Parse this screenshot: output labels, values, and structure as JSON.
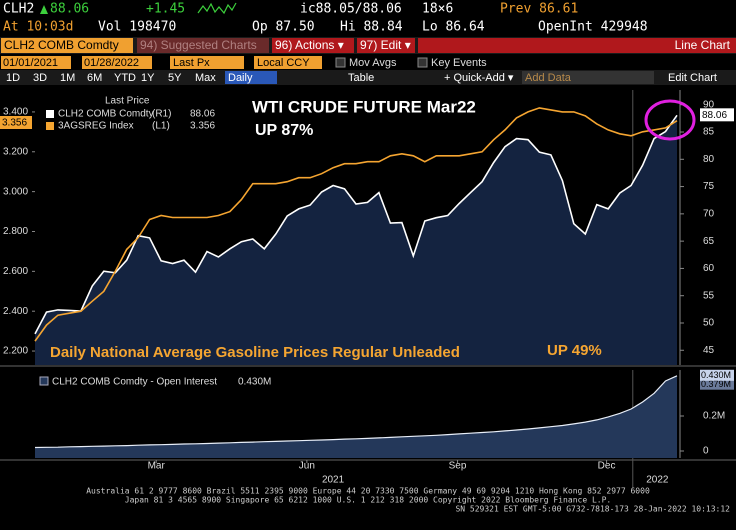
{
  "header": {
    "ticker": "CLH2",
    "last": "88.06",
    "change": "+1.45",
    "bid_ask": "ic88.05/88.06",
    "size": "18×6",
    "prev": "Prev 86.61",
    "time": "At 10:03d",
    "vol": "Vol 198470",
    "open": "Op 87.50",
    "high": "Hi 88.84",
    "low": "Lo 86.64",
    "open_interest": "OpenInt 429948"
  },
  "toolbar": {
    "security": "CLH2 COMB Comdty",
    "suggested": "94) Suggested Charts",
    "actions": "96) Actions ▾",
    "edit": "97) Edit ▾",
    "chart_type": "Line Chart",
    "start_date": "01/01/2021",
    "end_date": "01/28/2022",
    "field": "Last Px",
    "currency": "Local CCY",
    "mov_avgs": "Mov Avgs",
    "key_events": "Key Events",
    "periods": [
      "1D",
      "3D",
      "1M",
      "6M",
      "YTD",
      "1Y",
      "5Y",
      "Max"
    ],
    "frequency": "Daily",
    "table": "Table",
    "quick_add": "+ Quick-Add ▾",
    "add_data": "Add Data",
    "edit_chart": "Edit Chart"
  },
  "footer": {
    "line1": "Australia 61 2 9777 8600 Brazil 5511 2395 9000 Europe 44 20 7330 7500 Germany 49 69 9204 1210 Hong Kong 852 2977 6000",
    "line2": "Japan 81 3 4565 8900       Singapore 65 6212 1000       U.S. 1 212 318 2000          Copyright 2022 Bloomberg Finance L.P.",
    "line3": "SN 529321 EST  GMT-5:00 G732-7818-173 28-Jan-2022 10:13:12"
  },
  "chart_data": [
    {
      "type": "line",
      "title": "WTI CRUDE FUTURE  Mar22",
      "subtitle": "UP 87%",
      "annotations": [
        "Daily National Average Gasoline Prices Regular Unleaded",
        "UP 49%"
      ],
      "legend_title": "Last Price",
      "x": [
        0,
        7,
        14,
        21,
        28,
        35,
        42,
        49,
        56,
        63,
        70,
        77,
        84,
        91,
        98,
        105,
        112,
        119,
        126,
        133,
        140,
        147,
        154,
        161,
        168,
        175,
        182,
        189,
        196,
        203,
        210,
        217,
        224,
        231,
        238,
        245,
        252,
        259,
        266,
        273,
        280,
        287,
        294,
        301,
        308,
        315,
        322,
        329,
        336,
        343,
        350,
        357,
        364,
        371,
        378,
        385,
        392
      ],
      "xlim": [
        0,
        392
      ],
      "ylim": [
        2.13,
        3.51
      ],
      "yticks": [
        {
          "value": 2.2,
          "label": "2.200"
        },
        {
          "value": 2.4,
          "label": "2.400"
        },
        {
          "value": 2.6,
          "label": "2.600"
        },
        {
          "value": 2.8,
          "label": "2.800"
        },
        {
          "value": 3.0,
          "label": "3.000"
        },
        {
          "value": 3.2,
          "label": "3.200"
        },
        {
          "value": 3.4,
          "label": "3.400"
        }
      ],
      "y2lim": [
        42.3,
        92.7
      ],
      "y2ticks": [
        45,
        50,
        55,
        60,
        65,
        70,
        75,
        80,
        85,
        90
      ],
      "series": [
        {
          "name": "CLH2 COMB Comdty",
          "legend_tag": "(R1)",
          "axis": "y2",
          "color": "#ffffff",
          "fill": "#142340",
          "values": [
            48,
            52,
            52.4,
            52.3,
            52.2,
            56.8,
            59.5,
            59.2,
            61.5,
            66,
            65.6,
            61.4,
            60.9,
            61.5,
            59.3,
            63.1,
            62.1,
            63.6,
            64.9,
            65.4,
            63.6,
            66.3,
            69.6,
            70.9,
            71.6,
            74,
            75.2,
            74.6,
            71.8,
            72.1,
            73.9,
            68.3,
            68.4,
            62.3,
            68.7,
            69.3,
            69.7,
            71.9,
            73.9,
            75.9,
            79.4,
            82.3,
            83.8,
            83.6,
            81.3,
            80.8,
            76.1,
            68.2,
            66.3,
            71.7,
            70.9,
            73.8,
            75.2,
            78.9,
            83.8,
            85.1,
            88.06
          ]
        },
        {
          "name": "3AGSREG Index",
          "legend_tag": "(L1)",
          "color": "#f5a531",
          "values": [
            2.25,
            2.33,
            2.38,
            2.39,
            2.4,
            2.45,
            2.5,
            2.6,
            2.71,
            2.77,
            2.86,
            2.88,
            2.87,
            2.87,
            2.87,
            2.87,
            2.88,
            2.9,
            2.96,
            3.04,
            3.04,
            3.04,
            3.05,
            3.07,
            3.07,
            3.09,
            3.12,
            3.14,
            3.14,
            3.15,
            3.15,
            3.18,
            3.19,
            3.18,
            3.15,
            3.18,
            3.18,
            3.18,
            3.19,
            3.2,
            3.26,
            3.31,
            3.37,
            3.4,
            3.42,
            3.41,
            3.4,
            3.4,
            3.38,
            3.34,
            3.31,
            3.29,
            3.28,
            3.3,
            3.31,
            3.32,
            3.356
          ]
        }
      ]
    },
    {
      "type": "area",
      "title": "CLH2 COMB Comdty - Open Interest",
      "last_label": "0.430M",
      "ref_marker": {
        "value": 0.379,
        "label": "0.379M"
      },
      "x": [
        0,
        7,
        14,
        21,
        28,
        35,
        42,
        49,
        56,
        63,
        70,
        77,
        84,
        91,
        98,
        105,
        112,
        119,
        126,
        133,
        140,
        147,
        154,
        161,
        168,
        175,
        182,
        189,
        196,
        203,
        210,
        217,
        224,
        231,
        238,
        245,
        252,
        259,
        266,
        273,
        280,
        287,
        294,
        301,
        308,
        315,
        322,
        329,
        336,
        343,
        350,
        357,
        364,
        371,
        378,
        385,
        392
      ],
      "xlim": [
        0,
        392
      ],
      "xticks": [
        {
          "value": 74,
          "label": "Mar"
        },
        {
          "value": 166,
          "label": "Jun"
        },
        {
          "value": 258,
          "label": "Sep"
        },
        {
          "value": 349,
          "label": "Dec"
        }
      ],
      "year_labels": [
        {
          "value": 182,
          "label": "2021"
        },
        {
          "value": 380,
          "label": "2022"
        }
      ],
      "year_divider": 365,
      "ylim": [
        -0.04,
        0.463
      ],
      "yticks": [
        0,
        {
          "value": 0.2,
          "label": "0.2M"
        }
      ],
      "series": [
        {
          "name": "CLH2 COMB Comdty - Open Interest",
          "color": "#e8eef8",
          "fill": "#24385a",
          "values": [
            0.02,
            0.021,
            0.022,
            0.024,
            0.025,
            0.027,
            0.028,
            0.03,
            0.031,
            0.033,
            0.035,
            0.036,
            0.038,
            0.04,
            0.041,
            0.043,
            0.045,
            0.047,
            0.049,
            0.051,
            0.053,
            0.055,
            0.057,
            0.059,
            0.061,
            0.063,
            0.065,
            0.068,
            0.07,
            0.072,
            0.075,
            0.078,
            0.081,
            0.084,
            0.087,
            0.09,
            0.094,
            0.098,
            0.102,
            0.106,
            0.11,
            0.115,
            0.12,
            0.126,
            0.132,
            0.139,
            0.146,
            0.155,
            0.165,
            0.178,
            0.195,
            0.215,
            0.24,
            0.28,
            0.33,
            0.4,
            0.43
          ]
        }
      ]
    }
  ]
}
